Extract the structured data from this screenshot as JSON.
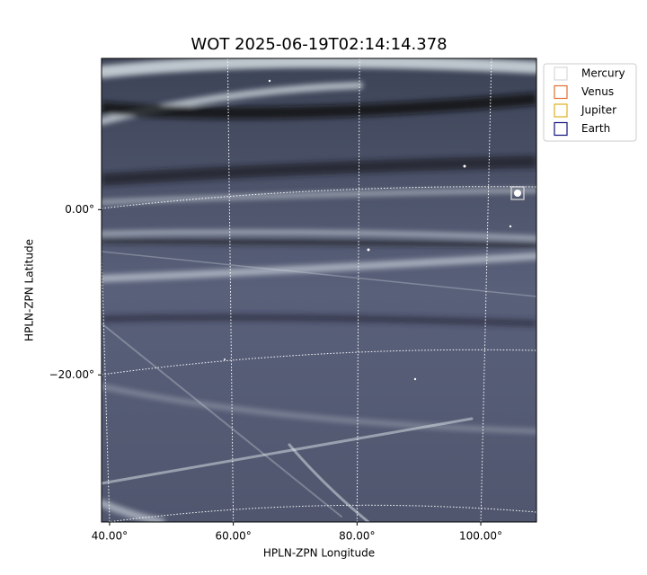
{
  "chart_data": {
    "type": "image",
    "title": "WOT 2025-06-19T02:14:14.378",
    "x_label": "HPLN-ZPN Longitude",
    "y_label": "HPLN-ZPN Latitude",
    "xlim": [
      38.7,
      109
    ],
    "ylim": [
      -37.8,
      18.3
    ],
    "xticks": [
      {
        "value": 40,
        "label": "40.00°"
      },
      {
        "value": 60,
        "label": "60.00°"
      },
      {
        "value": 80,
        "label": "80.00°"
      },
      {
        "value": 100,
        "label": "100.00°"
      }
    ],
    "yticks": [
      {
        "value": 0,
        "label": "0.00°"
      },
      {
        "value": -20,
        "label": "−20.00°"
      }
    ],
    "grid": true,
    "legend": "upper right",
    "series": [
      {
        "name": "Mercury",
        "color": "#d8d8d8"
      },
      {
        "name": "Venus",
        "color": "#e07030"
      },
      {
        "name": "Jupiter",
        "color": "#e0b020"
      },
      {
        "name": "Earth",
        "color": "#101080"
      }
    ]
  }
}
